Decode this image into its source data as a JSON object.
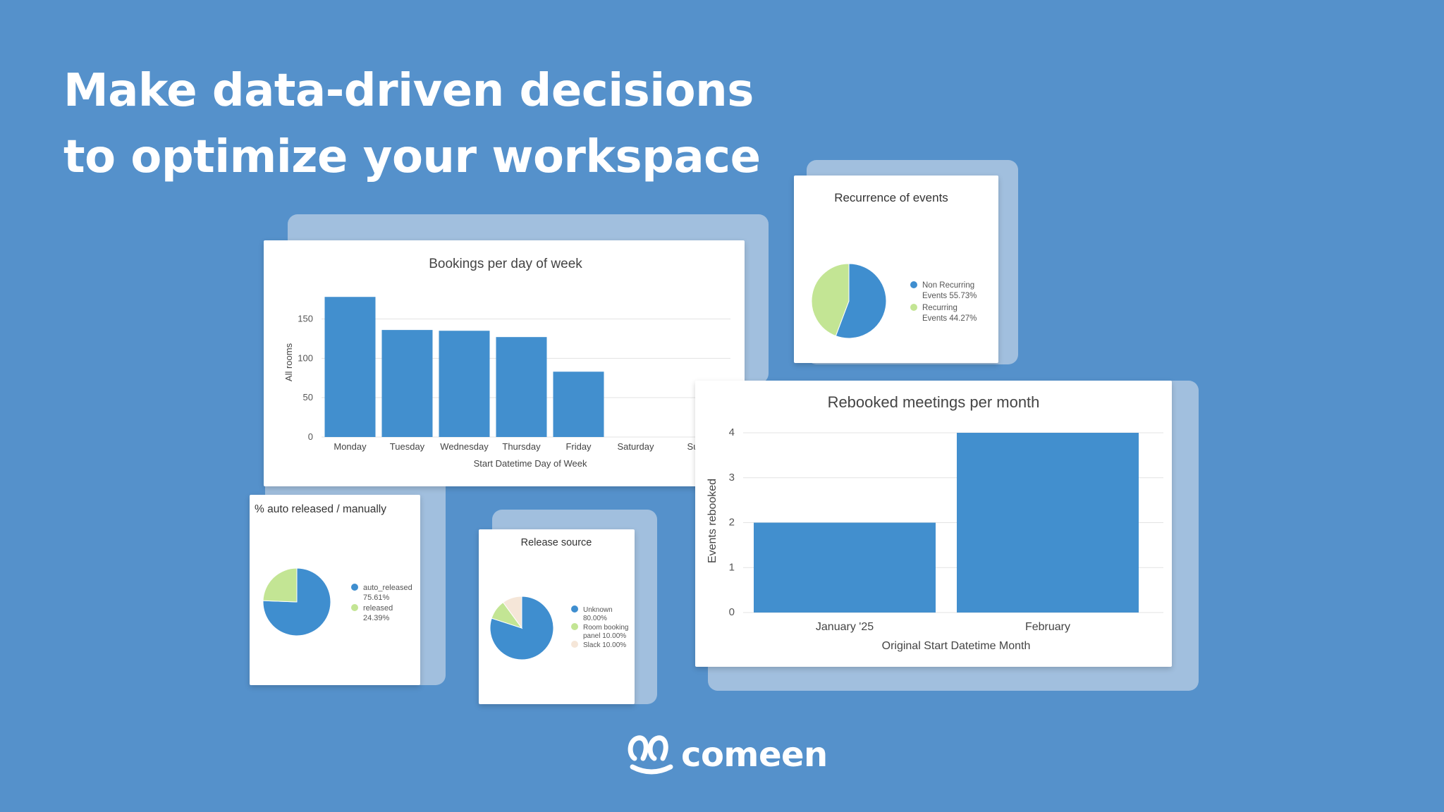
{
  "headline": {
    "line1": "Make data-driven decisions",
    "line2": "to optimize your workspace"
  },
  "brand": {
    "name": "comeen"
  },
  "colors": {
    "background": "#5591cb",
    "bar": "#428fce",
    "pie_blue": "#3f8ecf",
    "pie_green": "#c3e594",
    "pie_cream": "#f5e6d8"
  },
  "chart_data": [
    {
      "type": "bar",
      "title": "Bookings per day of week",
      "xlabel": "Start Datetime Day of Week",
      "ylabel": "All rooms",
      "categories": [
        "Monday",
        "Tuesday",
        "Wednesday",
        "Thursday",
        "Friday",
        "Saturday",
        "Su"
      ],
      "values": [
        178,
        136,
        135,
        127,
        83,
        0,
        0
      ],
      "ylim": [
        0,
        180
      ],
      "yticks": [
        "0",
        "50",
        "100",
        "150"
      ],
      "grid": true
    },
    {
      "type": "pie",
      "title": "Recurrence of events",
      "slices": [
        {
          "label_lines": [
            "Non Recurring",
            "Events 55.73%"
          ],
          "value": 55.73,
          "color": "#3f8ecf"
        },
        {
          "label_lines": [
            "Recurring",
            "Events 44.27%"
          ],
          "value": 44.27,
          "color": "#c3e594"
        }
      ],
      "legend": "right"
    },
    {
      "type": "bar",
      "title": "Rebooked meetings per month",
      "xlabel": "Original Start Datetime Month",
      "ylabel": "Events rebooked",
      "categories": [
        "January '25",
        "February"
      ],
      "values": [
        2,
        4
      ],
      "ylim": [
        0,
        4
      ],
      "yticks": [
        "0",
        "1",
        "2",
        "3",
        "4"
      ],
      "grid": true
    },
    {
      "type": "pie",
      "title": "% auto released / manually",
      "slices": [
        {
          "label_lines": [
            "auto_released",
            "75.61%"
          ],
          "value": 75.61,
          "color": "#3f8ecf"
        },
        {
          "label_lines": [
            "released",
            "24.39%"
          ],
          "value": 24.39,
          "color": "#c3e594"
        }
      ],
      "legend": "right"
    },
    {
      "type": "pie",
      "title": "Release source",
      "slices": [
        {
          "label_lines": [
            "Unknown",
            "80.00%"
          ],
          "value": 80.0,
          "color": "#3f8ecf"
        },
        {
          "label_lines": [
            "Room booking",
            "panel 10.00%"
          ],
          "value": 10.0,
          "color": "#c3e594"
        },
        {
          "label_lines": [
            "Slack 10.00%"
          ],
          "value": 10.0,
          "color": "#f5e6d8"
        }
      ],
      "legend": "right"
    }
  ]
}
